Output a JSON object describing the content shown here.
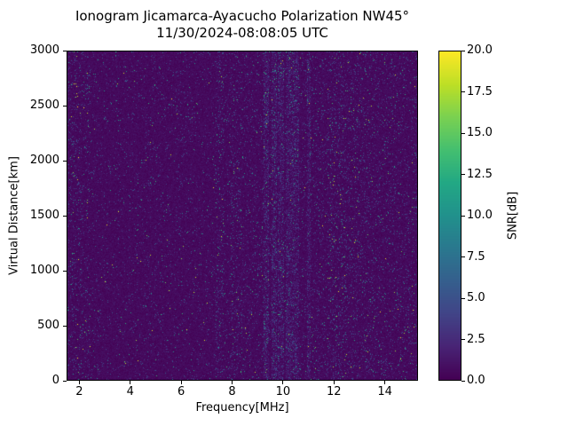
{
  "chart_data": {
    "type": "heatmap",
    "title": "Ionogram Jicamarca-Ayacucho Polarization NW45°",
    "subtitle": "11/30/2024-08:08:05 UTC",
    "xlabel": "Frequency[MHz]",
    "ylabel": "Virtual Distance[km]",
    "colorbar_label": "SNR[dB]",
    "xlim": [
      1.5,
      15.3
    ],
    "ylim": [
      0,
      3000
    ],
    "x_ticks": [
      2,
      4,
      6,
      8,
      10,
      12,
      14
    ],
    "y_ticks": [
      0,
      500,
      1000,
      1500,
      2000,
      2500,
      3000
    ],
    "colorbar_ticks": [
      0.0,
      2.5,
      5.0,
      7.5,
      10.0,
      12.5,
      15.0,
      17.5,
      20.0
    ],
    "colorbar_range": [
      0,
      20
    ],
    "colormap": "viridis",
    "background_color": "#440154",
    "peak_color": "#fde725",
    "viridis_stops": [
      [
        0.0,
        "#440154"
      ],
      [
        0.1,
        "#482475"
      ],
      [
        0.2,
        "#414487"
      ],
      [
        0.3,
        "#355f8d"
      ],
      [
        0.4,
        "#2a788e"
      ],
      [
        0.5,
        "#21918c"
      ],
      [
        0.6,
        "#22a884"
      ],
      [
        0.7,
        "#44bf70"
      ],
      [
        0.8,
        "#7ad151"
      ],
      [
        0.9,
        "#bddf26"
      ],
      [
        1.0,
        "#fde725"
      ]
    ],
    "description": "Ionogram dominated by near-0 dB dark background with sparse speckle noise; enhanced vertical interference/noise bands near 1.5-2.4, 7.4-7.6, 7.9-8.4, 9.2-10.6, ~11, 11.8-12.5 and 12.5-13.6 MHz, with scattered bright 15-20 dB points; no continuous ionospheric echo trace visible.",
    "noise": {
      "seed": 80805,
      "bands": [
        {
          "freq_start": 1.5,
          "freq_end": 2.4,
          "density": 1.5,
          "bright_density": 3.0
        },
        {
          "freq_start": 2.4,
          "freq_end": 7.3,
          "density": 0.7,
          "bright_density": 0.7
        },
        {
          "freq_start": 7.35,
          "freq_end": 7.65,
          "density": 2.2,
          "bright_density": 1.0
        },
        {
          "freq_start": 7.9,
          "freq_end": 8.4,
          "density": 1.8,
          "bright_density": 2.0
        },
        {
          "freq_start": 8.4,
          "freq_end": 9.2,
          "density": 1.2,
          "bright_density": 1.0
        },
        {
          "freq_start": 9.25,
          "freq_end": 9.45,
          "density": 3.0,
          "bright_density": 1.5
        },
        {
          "freq_start": 9.55,
          "freq_end": 9.75,
          "density": 3.5,
          "bright_density": 1.5
        },
        {
          "freq_start": 9.8,
          "freq_end": 10.05,
          "density": 3.2,
          "bright_density": 1.5
        },
        {
          "freq_start": 10.1,
          "freq_end": 10.65,
          "density": 2.8,
          "bright_density": 1.5
        },
        {
          "freq_start": 10.95,
          "freq_end": 11.1,
          "density": 2.5,
          "bright_density": 1.0
        },
        {
          "freq_start": 11.15,
          "freq_end": 11.7,
          "density": 1.3,
          "bright_density": 1.0
        },
        {
          "freq_start": 11.75,
          "freq_end": 12.5,
          "density": 2.2,
          "bright_density": 5.0
        },
        {
          "freq_start": 12.5,
          "freq_end": 13.6,
          "density": 1.6,
          "bright_density": 2.5
        },
        {
          "freq_start": 13.6,
          "freq_end": 15.3,
          "density": 1.4,
          "bright_density": 1.5
        }
      ]
    }
  }
}
